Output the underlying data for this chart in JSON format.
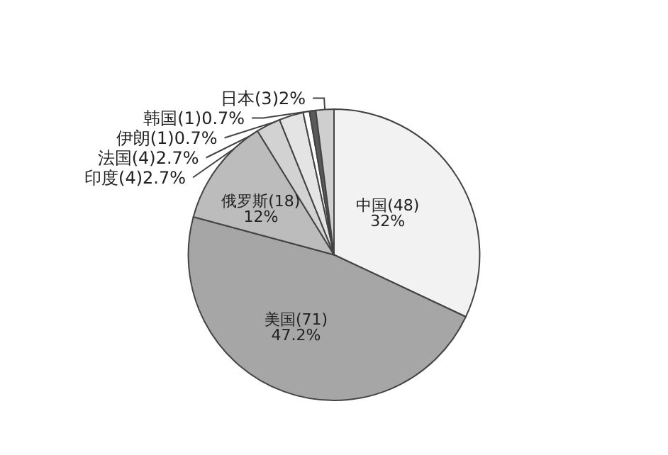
{
  "chart_data": {
    "type": "pie",
    "categories": [
      "中国(48)",
      "美国(71)",
      "俄罗斯(18)",
      "印度(4)",
      "法国(4)",
      "伊朗(1)",
      "韩国(1)",
      "日本(3)"
    ],
    "values": [
      32,
      47.2,
      12,
      2.7,
      2.7,
      0.7,
      0.7,
      2
    ],
    "value_labels": [
      "32%",
      "47.2%",
      "12%",
      "2.7%",
      "2.7%",
      "0.7%",
      "0.7%",
      "2%"
    ],
    "colors": [
      "#f2f2f2",
      "#a6a6a6",
      "#bcbcbc",
      "#d2d2d2",
      "#e4e4e4",
      "#ffffff",
      "#5a5a5a",
      "#cfcfcf"
    ]
  }
}
